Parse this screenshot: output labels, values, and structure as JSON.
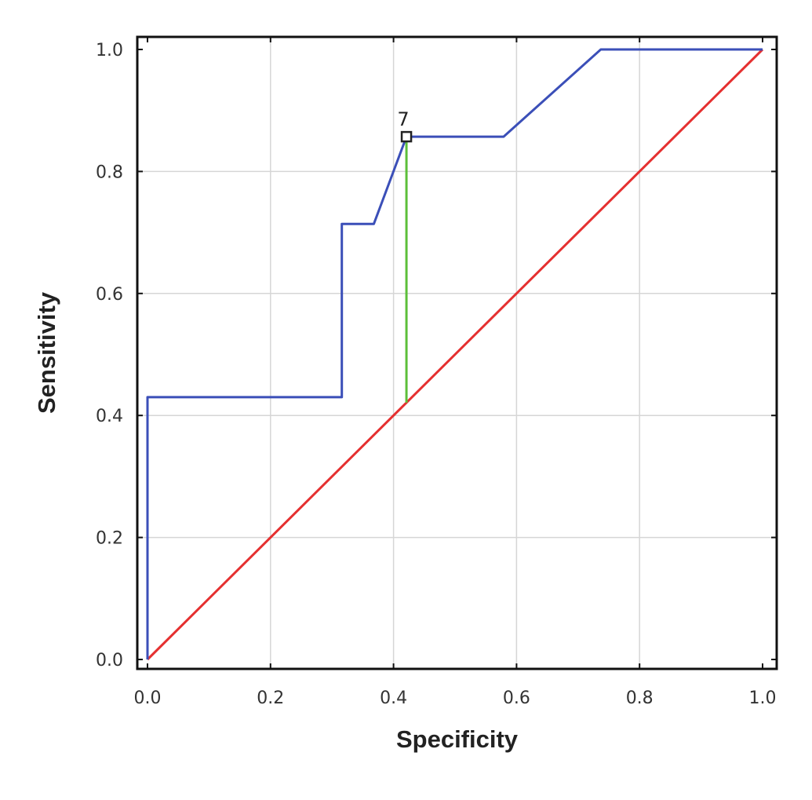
{
  "chart_data": {
    "type": "line",
    "xlabel": "Specificity",
    "ylabel": "Sensitivity",
    "xlim": [
      0.0,
      1.0
    ],
    "ylim": [
      0.0,
      1.0
    ],
    "grid": true,
    "x_ticks": [
      "0.0",
      "0.2",
      "0.4",
      "0.6",
      "0.8",
      "1.0"
    ],
    "y_ticks": [
      "0.0",
      "0.2",
      "0.4",
      "0.6",
      "0.8",
      "1.0"
    ],
    "series": [
      {
        "color": "#3b4fb8",
        "points": [
          [
            0.0,
            0.0
          ],
          [
            0.0,
            0.43
          ],
          [
            0.316,
            0.43
          ],
          [
            0.316,
            0.714
          ],
          [
            0.368,
            0.714
          ],
          [
            0.421,
            0.857
          ],
          [
            0.579,
            0.857
          ],
          [
            0.737,
            1.0
          ],
          [
            1.0,
            1.0
          ]
        ]
      },
      {
        "color": "#e53030",
        "points": [
          [
            0.0,
            0.0
          ],
          [
            1.0,
            1.0
          ]
        ]
      }
    ],
    "annotations": [
      {
        "label": "7",
        "x": 0.421,
        "y": 0.857,
        "vline_to": 0.421,
        "vline_color": "#5cbf3a"
      }
    ]
  }
}
